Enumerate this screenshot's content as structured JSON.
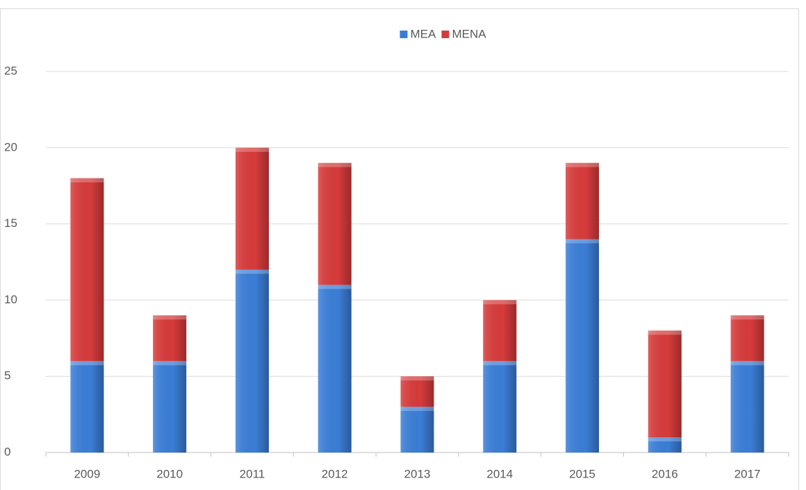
{
  "chart_data": {
    "type": "stacked_bar",
    "categories": [
      "2009",
      "2010",
      "2011",
      "2012",
      "2013",
      "2014",
      "2015",
      "2016",
      "2017"
    ],
    "series": [
      {
        "name": "MEA",
        "color": "#3b7dd6",
        "values": [
          6,
          6,
          12,
          11,
          3,
          6,
          14,
          1,
          6
        ]
      },
      {
        "name": "MENA",
        "color": "#d63b3b",
        "values": [
          12,
          3,
          8,
          8,
          2,
          4,
          5,
          7,
          3
        ]
      }
    ],
    "ylim": [
      0,
      25
    ],
    "yticks": [
      0,
      5,
      10,
      15,
      20,
      25
    ],
    "grid": true,
    "legend": "top"
  }
}
